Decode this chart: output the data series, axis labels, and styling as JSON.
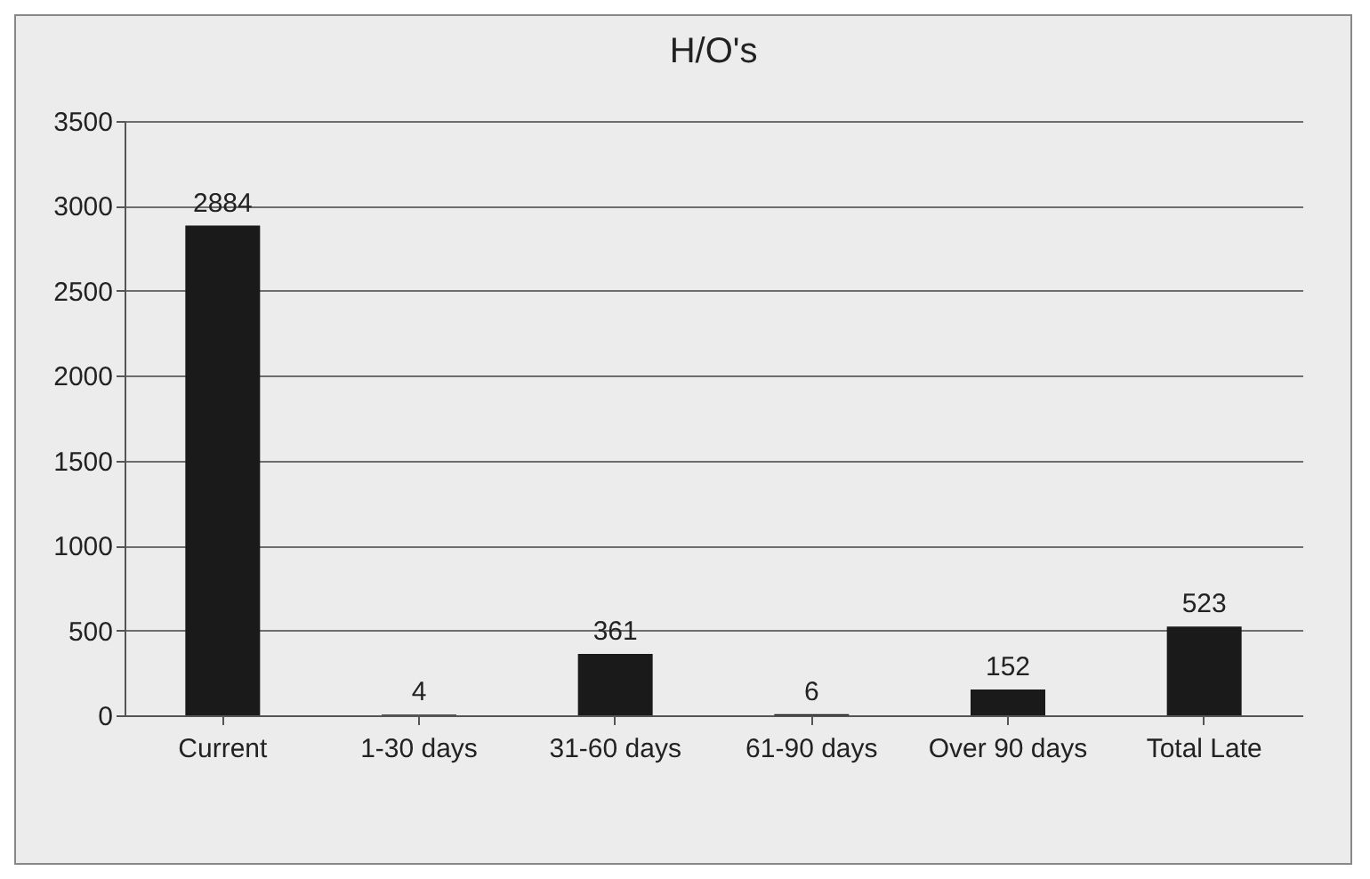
{
  "chart_data": {
    "type": "bar",
    "title": "H/O's",
    "categories": [
      "Current",
      "1-30 days",
      "31-60 days",
      "61-90 days",
      "Over 90 days",
      "Total Late"
    ],
    "values": [
      2884,
      4,
      361,
      6,
      152,
      523
    ],
    "color": "#1a1a1a",
    "ylim": [
      0,
      3500
    ],
    "yticks": [
      0,
      500,
      1000,
      1500,
      2000,
      2500,
      3000,
      3500
    ],
    "grid": "y",
    "data_labels": true
  }
}
